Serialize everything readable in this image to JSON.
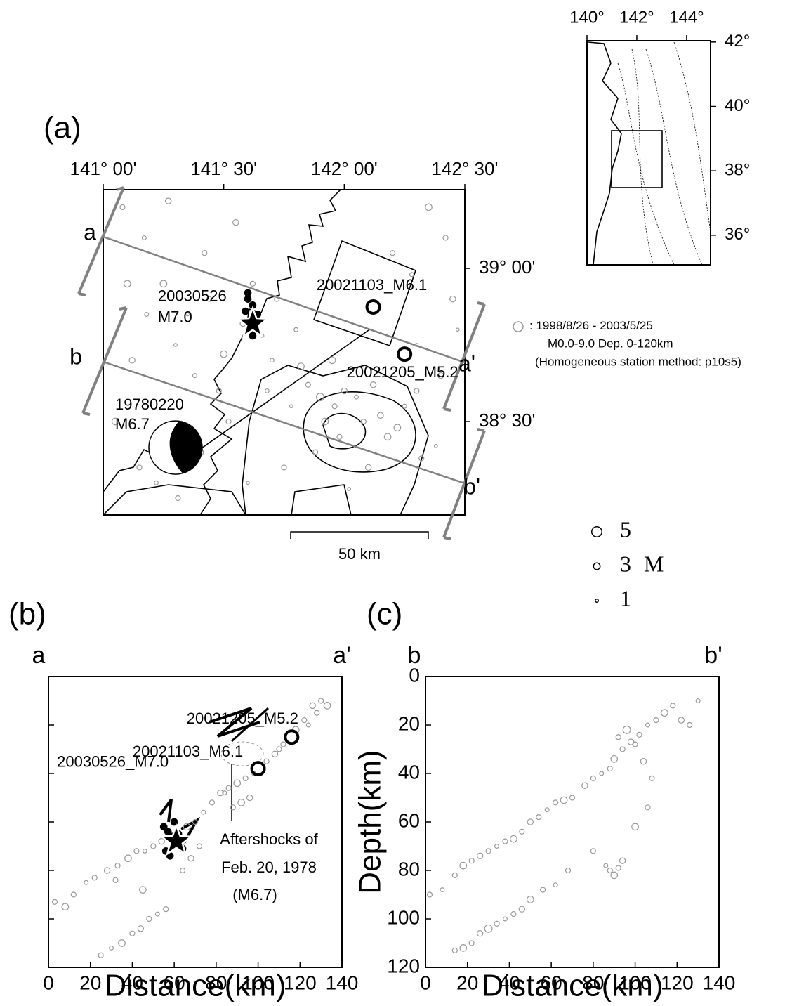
{
  "chart_data": [
    {
      "type": "map",
      "title": "(a)",
      "xlim": [
        141,
        142.5
      ],
      "ylim": [
        38.195,
        39.257
      ],
      "xticks": [
        {
          "value": 141,
          "label": "141° 00'"
        },
        {
          "value": 141.5,
          "label": "141° 30'"
        },
        {
          "value": 142,
          "label": "142° 00'"
        },
        {
          "value": 142.5,
          "label": "142° 30'"
        }
      ],
      "yticks": [
        {
          "value": 39,
          "label": "39° 00'"
        },
        {
          "value": 38.5,
          "label": "38° 30'"
        }
      ],
      "series": [
        {
          "name": "1998/8/26 - 2003/5/25",
          "color": "#999999",
          "x": [
            141.08,
            141.17,
            141.25,
            141.12,
            141.35,
            141.42,
            141.05,
            141.22,
            141.48,
            141.3,
            141.55,
            141.4,
            141.62,
            141.7,
            141.78,
            141.85,
            141.92,
            141.98,
            142.05,
            142.15,
            142.22,
            142.3,
            142.38,
            142.45,
            142.42,
            142.35,
            142.28,
            142.2,
            142.1,
            142.02,
            141.95,
            141.88,
            141.8,
            141.72,
            141.66,
            141.58,
            141.5,
            141.44,
            141.38,
            141.31,
            141.27,
            141.18,
            141.1,
            141.15,
            141.6,
            141.75,
            141.9,
            142.0,
            142.08,
            142.18,
            142.25,
            142.32,
            142.4,
            142.47,
            141.52,
            141.68,
            141.82,
            141.96,
            142.12,
            142.3
          ],
          "values": [
            39.2,
            39.1,
            38.95,
            38.7,
            38.85,
            39.05,
            38.5,
            38.3,
            38.6,
            38.75,
            39.15,
            38.4,
            38.95,
            38.7,
            38.55,
            38.62,
            38.5,
            38.45,
            38.58,
            38.52,
            38.48,
            38.6,
            38.42,
            38.9,
            39.1,
            39.2,
            38.98,
            39.05,
            38.35,
            38.28,
            38.7,
            38.4,
            38.8,
            38.9,
            38.78,
            38.82,
            38.72,
            38.9,
            38.65,
            38.25,
            39.22,
            38.85,
            38.95,
            38.35,
            38.3,
            38.35,
            38.58,
            38.6,
            38.5,
            38.45,
            38.55,
            38.38,
            38.65,
            38.8,
            38.5,
            38.6,
            38.68,
            38.55,
            38.62,
            38.75
          ],
          "sizes": [
            2,
            1.5,
            3,
            2.5,
            1,
            2,
            3,
            1.5,
            2,
            1,
            2.5,
            3.5,
            2,
            1.5,
            1,
            2,
            3,
            2,
            1.5,
            2.5,
            3,
            2,
            1,
            2.5,
            2,
            3,
            1.5,
            2,
            2.5,
            1,
            3,
            2,
            1.5,
            2,
            1,
            2.5,
            3,
            2,
            1.5,
            2,
            2.5,
            1.5,
            3,
            2,
            1,
            2,
            3.5,
            2.5,
            2,
            3,
            1.5,
            2,
            2.5,
            1,
            2,
            1.5,
            3,
            2,
            2.5,
            1
          ]
        },
        {
          "color": "#000000",
          "x": [
            141.6,
            141.62,
            141.64,
            141.59,
            141.61,
            141.63,
            141.6,
            141.62
          ],
          "values": [
            38.9,
            38.88,
            38.85,
            38.86,
            38.83,
            38.8,
            38.92,
            38.78
          ],
          "sizes": [
            3,
            3,
            3,
            3,
            3,
            3,
            3,
            3
          ]
        }
      ],
      "events": [
        {
          "label": "20021103_M6.1",
          "x": 142.12,
          "y": 38.874
        },
        {
          "label": "20021205_M5.2",
          "x": 142.25,
          "y": 38.72
        }
      ],
      "star": {
        "x": 141.62,
        "y": 38.82,
        "label": [
          "20030526",
          "M7.0"
        ]
      },
      "focal_mechanism": {
        "x": 141.3,
        "y": 38.415,
        "label": [
          "19780220",
          "M6.7"
        ]
      },
      "profile_labels": [
        "a",
        "a'",
        "b",
        "b'"
      ],
      "scale_bar": "50 km",
      "legend_notes": [
        "M0.0-9.0 Dep. 0-120km",
        "(Homogeneous station method: p10s5)"
      ],
      "size_legend": {
        "values": [
          5,
          3,
          1
        ],
        "unit": "M"
      }
    },
    {
      "type": "inset_map",
      "xlim": [
        140,
        144.96
      ],
      "ylim": [
        35.08,
        42.04
      ],
      "xticks": [
        {
          "value": 140,
          "label": "140°"
        },
        {
          "value": 142,
          "label": "142°"
        },
        {
          "value": 144,
          "label": "144°"
        }
      ],
      "yticks": [
        {
          "value": 36,
          "label": "36°"
        },
        {
          "value": 38,
          "label": "38°"
        },
        {
          "value": 40,
          "label": "40°"
        },
        {
          "value": 42,
          "label": "42°"
        }
      ]
    },
    {
      "type": "scatter",
      "title": "(b)",
      "ends": [
        "a",
        "a'"
      ],
      "xlabel": "Distance(km)",
      "xlim": [
        0,
        140
      ],
      "ylim": [
        0,
        120
      ],
      "y_reversed": true,
      "ytick_labels": false,
      "xticks": [
        0,
        20,
        40,
        60,
        80,
        100,
        120,
        140
      ],
      "yticks": [
        0,
        20,
        40,
        60,
        80,
        100,
        120
      ],
      "series": [
        {
          "color": "#999999",
          "x": [
            3,
            8,
            12,
            18,
            22,
            28,
            33,
            38,
            42,
            46,
            50,
            54,
            58,
            66,
            70,
            74,
            78,
            82,
            86,
            90,
            94,
            98,
            104,
            108,
            112,
            118,
            122,
            126,
            130,
            133,
            128,
            124,
            110,
            96,
            92,
            88,
            84,
            72,
            68,
            64,
            25,
            30,
            35,
            40,
            44,
            48,
            52,
            56,
            32,
            45
          ],
          "values": [
            93,
            95,
            90,
            85,
            83,
            80,
            78,
            75,
            72,
            72,
            70,
            68,
            66,
            62,
            60,
            56,
            52,
            48,
            46,
            44,
            42,
            40,
            35,
            32,
            28,
            22,
            18,
            12,
            10,
            12,
            15,
            20,
            30,
            50,
            52,
            54,
            48,
            70,
            75,
            80,
            115,
            112,
            110,
            106,
            104,
            100,
            98,
            96,
            84,
            88
          ],
          "sizes": [
            2,
            3,
            2,
            1.5,
            2,
            2.5,
            2,
            3,
            2,
            1.5,
            2,
            2.5,
            2,
            3,
            2,
            1.5,
            2,
            2.5,
            2,
            3,
            2,
            1.5,
            2,
            2.5,
            2,
            3,
            2,
            2.5,
            2,
            3,
            2,
            1.5,
            2,
            2.5,
            3,
            2,
            1.5,
            2,
            2.5,
            2,
            2,
            1.5,
            3,
            2,
            2.5,
            2,
            1.5,
            2,
            2,
            3
          ]
        },
        {
          "color": "#000000",
          "x": [
            55,
            57,
            59,
            61,
            63,
            56,
            58,
            60,
            62,
            64
          ],
          "values": [
            62,
            64,
            66,
            68,
            70,
            72,
            74,
            60,
            65,
            71
          ],
          "sizes": [
            3,
            3,
            3,
            3,
            3,
            3,
            3,
            3,
            3,
            3
          ]
        }
      ],
      "events": [
        {
          "label": "20021205_M5.2",
          "x": 116,
          "y": 25
        },
        {
          "label": "20021103_M6.1",
          "x": 100,
          "y": 38
        }
      ],
      "star": {
        "x": 61,
        "y": 68,
        "label": [
          "20030526_M7.0"
        ]
      },
      "annotation": [
        "Aftershocks of",
        "Feb. 20, 1978",
        "(M6.7)"
      ]
    },
    {
      "type": "scatter",
      "title": "(c)",
      "ends": [
        "b",
        "b'"
      ],
      "xlabel": "Distance(km)",
      "ylabel": "Depth(km)",
      "xlim": [
        0,
        140
      ],
      "ylim": [
        0,
        120
      ],
      "y_reversed": true,
      "ytick_labels": true,
      "xticks": [
        0,
        20,
        40,
        60,
        80,
        100,
        120,
        140
      ],
      "yticks": [
        0,
        20,
        40,
        60,
        80,
        100,
        120
      ],
      "series": [
        {
          "color": "#999999",
          "x": [
            2,
            8,
            14,
            18,
            22,
            26,
            30,
            34,
            38,
            42,
            46,
            50,
            54,
            58,
            62,
            66,
            70,
            76,
            80,
            84,
            88,
            90,
            94,
            98,
            102,
            106,
            110,
            114,
            118,
            122,
            126,
            130,
            92,
            96,
            100,
            104,
            108,
            86,
            88,
            90,
            92,
            94,
            14,
            18,
            22,
            26,
            30,
            34,
            38,
            42,
            46,
            50,
            56,
            62,
            68,
            80,
            100,
            106
          ],
          "values": [
            90,
            88,
            82,
            78,
            76,
            74,
            72,
            70,
            68,
            67,
            64,
            60,
            58,
            55,
            52,
            51,
            50,
            45,
            42,
            40,
            38,
            34,
            30,
            27,
            24,
            20,
            18,
            15,
            12,
            18,
            20,
            10,
            25,
            22,
            28,
            35,
            42,
            78,
            80,
            82,
            79,
            76,
            113,
            112,
            110,
            106,
            104,
            102,
            100,
            98,
            96,
            92,
            88,
            86,
            80,
            72,
            62,
            54
          ],
          "sizes": [
            2,
            1.5,
            2,
            3,
            2,
            2.5,
            2,
            1.5,
            2,
            3,
            2,
            2.5,
            2,
            1.5,
            2,
            3,
            2,
            2.5,
            2,
            1.5,
            2,
            3,
            2,
            2.5,
            2,
            1.5,
            2,
            3,
            2,
            2.5,
            2,
            1.5,
            2,
            3.5,
            2,
            2.5,
            2,
            1.5,
            2,
            3,
            2,
            2.5,
            2,
            3,
            2,
            2.5,
            3.5,
            2,
            1.5,
            2,
            2.5,
            3,
            2,
            1.5,
            2,
            2,
            3,
            2
          ]
        }
      ]
    }
  ]
}
